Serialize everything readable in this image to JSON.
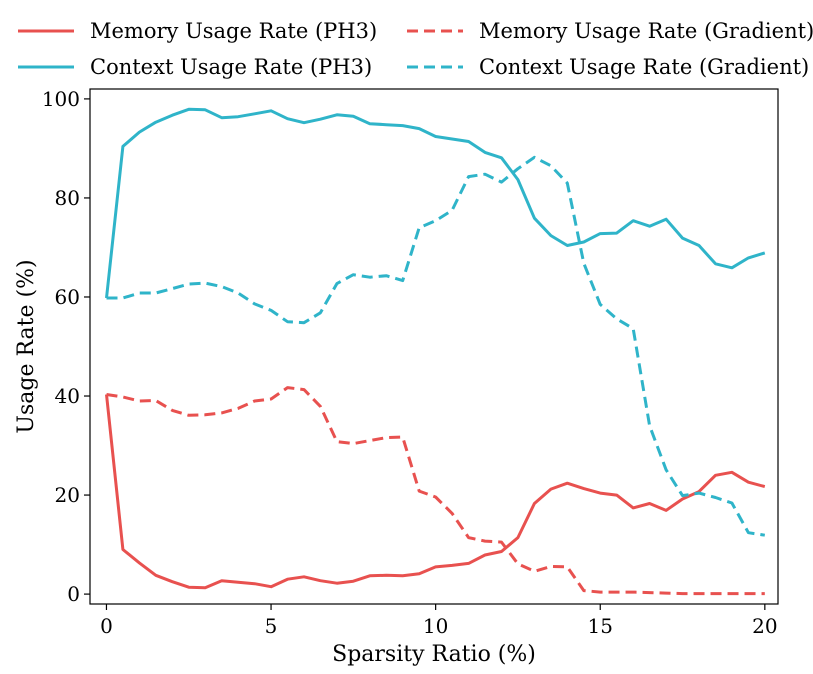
{
  "chart_data": {
    "type": "line",
    "xlabel": "Sparsity Ratio (%)",
    "ylabel": "Usage Rate (%)",
    "xlim": [
      -0.5,
      20.4
    ],
    "ylim": [
      -2,
      102
    ],
    "xticks": [
      0,
      5,
      10,
      15,
      20
    ],
    "yticks": [
      0,
      20,
      40,
      60,
      80,
      100
    ],
    "grid": false,
    "legend": "top, outside plot, 2 columns",
    "series": [
      {
        "name": "Memory Usage Rate (PH3)",
        "color": "#e8514f",
        "dash": "solid",
        "x": [
          0,
          0.5,
          1,
          1.5,
          2,
          2.5,
          3,
          3.5,
          4,
          4.5,
          5,
          5.5,
          6,
          6.5,
          7,
          7.5,
          8,
          8.5,
          9,
          9.5,
          10,
          10.5,
          11,
          11.5,
          12,
          12.5,
          13,
          13.5,
          14,
          14.5,
          15,
          15.5,
          16,
          16.5,
          17,
          17.5,
          18,
          18.5,
          19,
          19.5,
          20
        ],
        "y": [
          40.3,
          9.0,
          6.3,
          3.8,
          2.5,
          1.4,
          1.3,
          2.7,
          2.4,
          2.1,
          1.5,
          3.0,
          3.5,
          2.7,
          2.2,
          2.6,
          3.7,
          3.8,
          3.7,
          4.1,
          5.5,
          5.8,
          6.2,
          7.9,
          8.6,
          11.4,
          18.3,
          21.2,
          22.4,
          21.3,
          20.4,
          20.0,
          17.4,
          18.3,
          16.9,
          19.2,
          20.7,
          24.0,
          24.6,
          22.6,
          21.7
        ]
      },
      {
        "name": "Context Usage Rate (PH3)",
        "color": "#2fb4c9",
        "dash": "solid",
        "x": [
          0,
          0.5,
          1,
          1.5,
          2,
          2.5,
          3,
          3.5,
          4,
          4.5,
          5,
          5.5,
          6,
          6.5,
          7,
          7.5,
          8,
          8.5,
          9,
          9.5,
          10,
          10.5,
          11,
          11.5,
          12,
          12.5,
          13,
          13.5,
          14,
          14.5,
          15,
          15.5,
          16,
          16.5,
          17,
          17.5,
          18,
          18.5,
          19,
          19.5,
          20
        ],
        "y": [
          59.8,
          90.4,
          93.3,
          95.3,
          96.7,
          97.9,
          97.8,
          96.2,
          96.4,
          97.0,
          97.6,
          96.0,
          95.2,
          95.9,
          96.8,
          96.5,
          95.0,
          94.8,
          94.6,
          94.0,
          92.4,
          91.9,
          91.4,
          89.2,
          88.1,
          83.7,
          75.9,
          72.4,
          70.4,
          71.1,
          72.8,
          72.9,
          75.4,
          74.3,
          75.7,
          71.9,
          70.4,
          66.7,
          65.9,
          67.9,
          68.9
        ]
      },
      {
        "name": "Memory Usage Rate (Gradient)",
        "color": "#e8514f",
        "dash": "dashed",
        "x": [
          0,
          0.5,
          1,
          1.5,
          2,
          2.5,
          3,
          3.5,
          4,
          4.5,
          5,
          5.5,
          6,
          6.5,
          7,
          7.5,
          8,
          8.5,
          9,
          9.5,
          10,
          10.5,
          11,
          11.5,
          12,
          12.5,
          13,
          13.5,
          14,
          14.5,
          15,
          15.5,
          16,
          16.5,
          17,
          17.5,
          18,
          18.5,
          19,
          19.5,
          20
        ],
        "y": [
          40.3,
          39.8,
          39.0,
          39.1,
          37.1,
          36.1,
          36.2,
          36.6,
          37.5,
          39.0,
          39.4,
          41.7,
          41.3,
          37.9,
          30.8,
          30.4,
          31.0,
          31.6,
          31.7,
          20.8,
          19.6,
          16.3,
          11.4,
          10.7,
          10.5,
          6.1,
          4.6,
          5.6,
          5.5,
          0.7,
          0.4,
          0.4,
          0.4,
          0.3,
          0.2,
          0.1,
          0.1,
          0.1,
          0.1,
          0.1,
          0.1
        ]
      },
      {
        "name": "Context Usage Rate (Gradient)",
        "color": "#2fb4c9",
        "dash": "dashed",
        "x": [
          0,
          0.5,
          1,
          1.5,
          2,
          2.5,
          3,
          3.5,
          4,
          4.5,
          5,
          5.5,
          6,
          6.5,
          7,
          7.5,
          8,
          8.5,
          9,
          9.5,
          10,
          10.5,
          11,
          11.5,
          12,
          12.5,
          13,
          13.5,
          14,
          14.5,
          15,
          15.5,
          16,
          16.5,
          17,
          17.5,
          18,
          18.5,
          19,
          19.5,
          20
        ],
        "y": [
          59.8,
          59.8,
          60.8,
          60.8,
          61.7,
          62.6,
          62.8,
          62.1,
          60.8,
          58.6,
          57.3,
          55.0,
          54.8,
          56.8,
          62.7,
          64.5,
          64.0,
          64.3,
          63.3,
          74.0,
          75.4,
          77.5,
          84.3,
          84.8,
          83.2,
          85.9,
          88.2,
          86.5,
          83.0,
          66.8,
          58.5,
          55.6,
          53.6,
          34.0,
          25.1,
          19.9,
          20.4,
          19.5,
          18.4,
          12.4,
          11.9
        ]
      }
    ]
  }
}
